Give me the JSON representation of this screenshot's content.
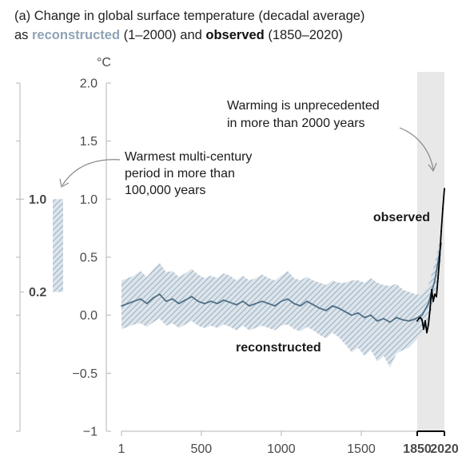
{
  "title": {
    "line1": "(a) Change in global surface temperature (decadal average)",
    "line2_prefix": "as ",
    "line2_recon": "reconstructed",
    "line2_mid": " (1–2000) and ",
    "line2_obs": "observed",
    "line2_suffix": " (1850–2020)"
  },
  "colors": {
    "reconstructed_line": "#4f6f86",
    "reconstructed_band": "#b9c8d4",
    "hatch": "#9fb2c1",
    "observed": "#000000",
    "shade": "#e8e8e8",
    "axis": "#b5b5b5"
  },
  "chart_data": {
    "type": "line",
    "ylabel": "°C",
    "xlim": [
      1,
      2020
    ],
    "ylim": [
      -1,
      2
    ],
    "y_ticks": [
      "2.0",
      "1.5",
      "1.0",
      "0.5",
      "0.0",
      "−0.5",
      "−1"
    ],
    "y_tick_values": [
      2.0,
      1.5,
      1.0,
      0.5,
      0.0,
      -0.5,
      -1
    ],
    "x_ticks": [
      "1",
      "500",
      "1000",
      "1500",
      "1850",
      "2020"
    ],
    "x_tick_values": [
      1,
      500,
      1000,
      1500,
      1850,
      2020
    ],
    "shaded_period": [
      1850,
      2020
    ],
    "series": [
      {
        "name": "reconstructed",
        "x": [
          1,
          40,
          80,
          120,
          160,
          200,
          240,
          280,
          320,
          360,
          400,
          440,
          480,
          520,
          560,
          600,
          640,
          680,
          720,
          760,
          800,
          840,
          880,
          920,
          960,
          1000,
          1040,
          1080,
          1120,
          1160,
          1200,
          1240,
          1280,
          1320,
          1360,
          1400,
          1440,
          1480,
          1520,
          1560,
          1600,
          1640,
          1680,
          1720,
          1760,
          1800,
          1840,
          1880,
          1920,
          1960,
          2000
        ],
        "values": [
          0.08,
          0.1,
          0.12,
          0.14,
          0.1,
          0.15,
          0.18,
          0.12,
          0.14,
          0.1,
          0.13,
          0.16,
          0.12,
          0.1,
          0.12,
          0.1,
          0.13,
          0.11,
          0.09,
          0.12,
          0.08,
          0.1,
          0.12,
          0.1,
          0.08,
          0.12,
          0.14,
          0.1,
          0.08,
          0.12,
          0.09,
          0.06,
          0.04,
          0.08,
          0.06,
          0.03,
          0.0,
          0.02,
          -0.02,
          0.0,
          -0.05,
          -0.03,
          -0.06,
          -0.02,
          -0.04,
          -0.05,
          -0.03,
          0.0,
          0.1,
          0.3,
          0.62
        ],
        "lower": [
          -0.12,
          -0.1,
          -0.08,
          -0.07,
          -0.1,
          -0.06,
          -0.03,
          -0.09,
          -0.07,
          -0.11,
          -0.08,
          -0.05,
          -0.09,
          -0.11,
          -0.09,
          -0.11,
          -0.08,
          -0.1,
          -0.13,
          -0.09,
          -0.13,
          -0.11,
          -0.09,
          -0.11,
          -0.13,
          -0.09,
          -0.08,
          -0.12,
          -0.14,
          -0.1,
          -0.13,
          -0.17,
          -0.2,
          -0.15,
          -0.19,
          -0.25,
          -0.32,
          -0.28,
          -0.35,
          -0.3,
          -0.4,
          -0.35,
          -0.45,
          -0.33,
          -0.3,
          -0.28,
          -0.22,
          -0.16,
          -0.05,
          0.15,
          0.5
        ],
        "upper": [
          0.3,
          0.32,
          0.34,
          0.38,
          0.33,
          0.4,
          0.45,
          0.37,
          0.38,
          0.33,
          0.36,
          0.4,
          0.35,
          0.32,
          0.34,
          0.32,
          0.36,
          0.34,
          0.3,
          0.34,
          0.3,
          0.32,
          0.35,
          0.32,
          0.3,
          0.34,
          0.38,
          0.32,
          0.3,
          0.33,
          0.3,
          0.28,
          0.26,
          0.3,
          0.28,
          0.28,
          0.3,
          0.3,
          0.28,
          0.32,
          0.28,
          0.26,
          0.25,
          0.27,
          0.22,
          0.2,
          0.18,
          0.18,
          0.26,
          0.45,
          0.72
        ]
      },
      {
        "name": "observed",
        "x": [
          1850,
          1860,
          1870,
          1880,
          1890,
          1900,
          1910,
          1920,
          1930,
          1940,
          1950,
          1960,
          1970,
          1980,
          1990,
          2000,
          2010,
          2020
        ],
        "values": [
          -0.05,
          -0.03,
          -0.02,
          -0.04,
          -0.12,
          -0.05,
          -0.15,
          -0.08,
          0.05,
          0.22,
          0.12,
          0.18,
          0.16,
          0.32,
          0.5,
          0.72,
          0.92,
          1.09
        ]
      }
    ],
    "annotations": {
      "unprecedented": [
        "Warming is unprecedented",
        "in more than 2000 years"
      ],
      "warmest": [
        "Warmest multi-century",
        "period in more than",
        "100,000 years"
      ],
      "observed_label": "observed",
      "reconstructed_label": "reconstructed"
    },
    "paleo_axis": {
      "ticks": [
        "1.0",
        "0.2"
      ],
      "tick_values": [
        1.0,
        0.2
      ],
      "bar_range": [
        0.2,
        1.0
      ]
    }
  }
}
